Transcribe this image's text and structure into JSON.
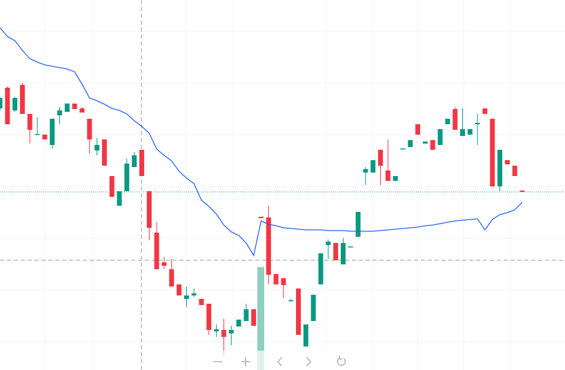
{
  "chart_data": {
    "type": "candlestick",
    "categories": [
      null,
      null,
      null,
      null,
      null,
      null,
      null,
      null,
      null,
      null,
      null,
      null,
      null,
      null,
      null,
      null,
      null,
      null,
      null,
      null,
      null,
      null,
      null,
      null,
      null,
      null,
      null,
      null,
      null,
      null,
      null,
      null,
      null,
      null,
      null,
      null,
      null,
      null,
      null,
      null,
      null,
      null,
      null,
      null,
      null,
      null,
      null,
      null,
      null,
      null,
      null,
      null,
      null,
      null,
      null,
      null,
      null,
      null,
      null,
      null,
      null,
      null,
      null,
      null,
      null,
      null,
      null,
      null,
      null,
      null,
      null
    ],
    "open": [
      379,
      409,
      376,
      413,
      371,
      341,
      341,
      326,
      369,
      374,
      386,
      379,
      364,
      318,
      334,
      281,
      238,
      259,
      294,
      319,
      259,
      199,
      156,
      146,
      124,
      103,
      108,
      103,
      96,
      56,
      58,
      53,
      63,
      71,
      88,
      222,
      221,
      139,
      133,
      101,
      118,
      34,
      71,
      124,
      181,
      184,
      153,
      178,
      193,
      286,
      286,
      319,
      289,
      274,
      320,
      323,
      356,
      328,
      333,
      326,
      356,
      378,
      339,
      341,
      356,
      379,
      364,
      266,
      304,
      296,
      260
    ],
    "high": [
      396,
      411,
      396,
      416,
      371,
      366,
      341,
      364,
      381,
      386,
      386,
      381,
      364,
      336,
      334,
      281,
      259,
      306,
      316,
      319,
      259,
      214,
      164,
      161,
      124,
      121,
      118,
      103,
      96,
      66,
      74,
      64,
      73,
      96,
      88,
      222,
      238,
      139,
      133,
      103,
      118,
      66,
      109,
      169,
      189,
      184,
      191,
      179,
      229,
      294,
      304,
      319,
      334,
      281,
      321,
      333,
      356,
      331,
      333,
      349,
      364,
      381,
      379,
      349,
      371,
      379,
      364,
      319,
      304,
      296,
      260
    ],
    "low": [
      376,
      356,
      374,
      371,
      328,
      341,
      334,
      321,
      356,
      374,
      378,
      373,
      314,
      311,
      296,
      251,
      238,
      259,
      294,
      281,
      188,
      146,
      146,
      121,
      108,
      91,
      106,
      94,
      51,
      48,
      21,
      36,
      63,
      71,
      64,
      220,
      124,
      124,
      104,
      101,
      51,
      34,
      71,
      124,
      161,
      159,
      153,
      178,
      193,
      268,
      286,
      268,
      274,
      274,
      320,
      323,
      341,
      328,
      319,
      326,
      356,
      348,
      339,
      341,
      326,
      371,
      266,
      259,
      298,
      281,
      258
    ],
    "close": [
      394,
      356,
      394,
      371,
      348,
      342,
      334,
      364,
      376,
      386,
      378,
      373,
      334,
      326,
      296,
      251,
      259,
      299,
      311,
      281,
      206,
      146,
      151,
      121,
      108,
      108,
      111,
      94,
      58,
      59,
      48,
      58,
      73,
      88,
      64,
      220,
      138,
      124,
      123,
      101,
      51,
      66,
      109,
      169,
      186,
      159,
      184,
      179,
      229,
      291,
      304,
      296,
      274,
      281,
      321,
      333,
      341,
      331,
      319,
      349,
      364,
      348,
      349,
      349,
      358,
      371,
      266,
      319,
      298,
      281,
      258
    ],
    "up_color": "#089981",
    "down_color": "#f23645",
    "overlay": {
      "color": "#2962ff",
      "values": [
        496,
        483,
        477,
        463,
        451,
        446,
        442,
        440,
        438,
        436,
        432,
        414,
        394,
        390,
        385,
        379,
        376,
        371,
        361,
        353,
        343,
        320,
        311,
        303,
        288,
        278,
        270,
        246,
        237,
        226,
        210,
        200,
        195,
        184,
        166,
        216,
        211,
        209,
        206,
        205,
        204,
        203,
        203,
        203,
        202,
        202,
        202,
        201,
        201,
        201,
        201,
        202,
        203,
        204,
        205,
        206,
        207,
        209,
        210,
        212,
        214,
        216,
        217,
        218,
        219,
        203,
        218,
        225,
        228,
        232,
        243
      ]
    },
    "ylim": [
      0,
      536
    ],
    "last_price_line": true
  }
}
